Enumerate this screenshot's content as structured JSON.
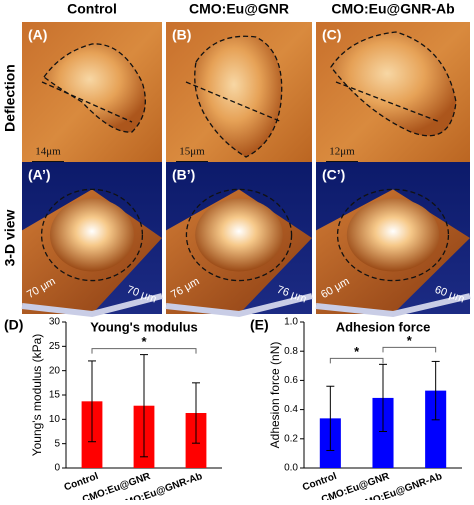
{
  "column_titles": [
    "Control",
    "CMO:Eu@GNR",
    "CMO:Eu@GNR-Ab"
  ],
  "row_titles": [
    "Deflection",
    "3-D view"
  ],
  "deflection_panels": [
    {
      "label": "(A)",
      "scale_bar": "14μm"
    },
    {
      "label": "(B)",
      "scale_bar": "15μm"
    },
    {
      "label": "(C)",
      "scale_bar": "12μm"
    }
  ],
  "view_panels": [
    {
      "label": "(A’)",
      "axis_labels": [
        "70 μm",
        "70 μm"
      ]
    },
    {
      "label": "(B’)",
      "axis_labels": [
        "76 μm",
        "76 μm"
      ]
    },
    {
      "label": "(C’)",
      "axis_labels": [
        "60 μm",
        "60 μm"
      ]
    }
  ],
  "chart_data": [
    {
      "type": "bar",
      "panel_label": "(D)",
      "title": "Young's modulus",
      "y_label": "Young's modulus (kPa)",
      "categories": [
        "Control",
        "CMO:Eu@GNR",
        "CMO:Eu@GNR-Ab"
      ],
      "values": [
        13.7,
        12.8,
        11.3
      ],
      "errors": [
        8.3,
        10.5,
        6.2
      ],
      "color": "#ff0000",
      "ylim": [
        0,
        30
      ],
      "yticks": [
        0,
        5,
        10,
        15,
        20,
        25,
        30
      ],
      "significance": [
        {
          "between": [
            "Control",
            "CMO:Eu@GNR-Ab"
          ],
          "label": "*"
        }
      ]
    },
    {
      "type": "bar",
      "panel_label": "(E)",
      "title": "Adhesion force",
      "y_label": "Adhesion force (nN)",
      "categories": [
        "Control",
        "CMO:Eu@GNR",
        "CMO:Eu@GNR-Ab"
      ],
      "values": [
        0.34,
        0.48,
        0.53
      ],
      "errors": [
        0.22,
        0.23,
        0.2
      ],
      "color": "#0000ff",
      "ylim": [
        0,
        1
      ],
      "yticks": [
        {
          "value": 0,
          "label": "0.0"
        },
        0.2,
        0.4,
        0.6,
        0.8,
        {
          "value": 1,
          "label": "1.0"
        }
      ],
      "significance": [
        {
          "between": [
            "Control",
            "CMO:Eu@GNR"
          ],
          "label": "*"
        },
        {
          "between": [
            "CMO:Eu@GNR",
            "CMO:Eu@GNR-Ab"
          ],
          "label": "*"
        }
      ]
    }
  ]
}
